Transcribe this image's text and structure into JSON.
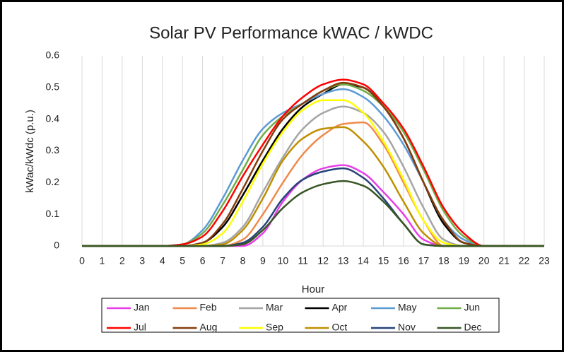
{
  "chart_data": {
    "type": "line",
    "title": "Solar PV Performance kWAC / kWDC",
    "x_label": "Hour",
    "y_label": "kWac/kWdc (p.u.)",
    "x": [
      0,
      1,
      2,
      3,
      4,
      5,
      6,
      7,
      8,
      9,
      10,
      11,
      12,
      13,
      14,
      15,
      16,
      17,
      18,
      19,
      20,
      21,
      22,
      23
    ],
    "xlim": [
      0,
      23
    ],
    "xticks": [
      0,
      1,
      2,
      3,
      4,
      5,
      6,
      7,
      8,
      9,
      10,
      11,
      12,
      13,
      14,
      15,
      16,
      17,
      18,
      19,
      20,
      21,
      22,
      23
    ],
    "ylim": [
      0,
      0.6
    ],
    "yticks": [
      0,
      0.1,
      0.2,
      0.3,
      0.4,
      0.5,
      0.6
    ],
    "grid": {
      "x": true,
      "y": false
    },
    "legend": "bottom",
    "series": [
      {
        "name": "Jan",
        "color": "#e83ee8",
        "values": [
          0,
          0,
          0,
          0,
          0,
          0,
          0,
          0,
          0,
          0.04,
          0.14,
          0.21,
          0.245,
          0.255,
          0.23,
          0.17,
          0.1,
          0.02,
          0,
          0,
          0,
          0,
          0,
          0
        ]
      },
      {
        "name": "Feb",
        "color": "#f08a4b",
        "values": [
          0,
          0,
          0,
          0,
          0,
          0,
          0,
          0,
          0.02,
          0.1,
          0.2,
          0.29,
          0.35,
          0.385,
          0.39,
          0.32,
          0.2,
          0.08,
          0,
          0,
          0,
          0,
          0,
          0
        ]
      },
      {
        "name": "Mar",
        "color": "#a5a5a5",
        "values": [
          0,
          0,
          0,
          0,
          0,
          0,
          0,
          0.01,
          0.06,
          0.17,
          0.28,
          0.37,
          0.42,
          0.44,
          0.42,
          0.36,
          0.25,
          0.12,
          0.02,
          0,
          0,
          0,
          0,
          0
        ]
      },
      {
        "name": "Apr",
        "color": "#000000",
        "values": [
          0,
          0,
          0,
          0,
          0,
          0,
          0.01,
          0.06,
          0.16,
          0.27,
          0.37,
          0.44,
          0.48,
          0.51,
          0.5,
          0.44,
          0.34,
          0.2,
          0.07,
          0.01,
          0,
          0,
          0,
          0
        ]
      },
      {
        "name": "May",
        "color": "#5b9bd5",
        "values": [
          0,
          0,
          0,
          0,
          0,
          0.005,
          0.05,
          0.15,
          0.27,
          0.37,
          0.42,
          0.45,
          0.48,
          0.495,
          0.47,
          0.41,
          0.32,
          0.2,
          0.08,
          0.02,
          0,
          0,
          0,
          0
        ]
      },
      {
        "name": "Jun",
        "color": "#70ad47",
        "values": [
          0,
          0,
          0,
          0,
          0,
          0.005,
          0.04,
          0.13,
          0.24,
          0.35,
          0.41,
          0.45,
          0.49,
          0.51,
          0.49,
          0.44,
          0.36,
          0.24,
          0.11,
          0.03,
          0,
          0,
          0,
          0
        ]
      },
      {
        "name": "Jul",
        "color": "#ff0000",
        "values": [
          0,
          0,
          0,
          0,
          0,
          0.005,
          0.03,
          0.11,
          0.22,
          0.32,
          0.41,
          0.47,
          0.51,
          0.525,
          0.51,
          0.45,
          0.37,
          0.25,
          0.12,
          0.04,
          0,
          0,
          0,
          0
        ]
      },
      {
        "name": "Aug",
        "color": "#843c0c",
        "values": [
          0,
          0,
          0,
          0,
          0,
          0,
          0.01,
          0.07,
          0.18,
          0.3,
          0.4,
          0.45,
          0.49,
          0.515,
          0.5,
          0.44,
          0.34,
          0.2,
          0.08,
          0.01,
          0,
          0,
          0,
          0
        ]
      },
      {
        "name": "Sep",
        "color": "#ffff00",
        "values": [
          0,
          0,
          0,
          0,
          0,
          0,
          0.005,
          0.04,
          0.14,
          0.26,
          0.36,
          0.43,
          0.46,
          0.46,
          0.42,
          0.33,
          0.21,
          0.08,
          0.01,
          0,
          0,
          0,
          0,
          0
        ]
      },
      {
        "name": "Oct",
        "color": "#bf8f00",
        "values": [
          0,
          0,
          0,
          0,
          0,
          0,
          0,
          0.005,
          0.05,
          0.15,
          0.27,
          0.34,
          0.37,
          0.375,
          0.33,
          0.25,
          0.14,
          0.04,
          0,
          0,
          0,
          0,
          0,
          0
        ]
      },
      {
        "name": "Nov",
        "color": "#264478",
        "values": [
          0,
          0,
          0,
          0,
          0,
          0,
          0,
          0,
          0.01,
          0.06,
          0.15,
          0.21,
          0.235,
          0.245,
          0.215,
          0.15,
          0.07,
          0.005,
          0,
          0,
          0,
          0,
          0,
          0
        ]
      },
      {
        "name": "Dec",
        "color": "#375623",
        "values": [
          0,
          0,
          0,
          0,
          0,
          0,
          0,
          0,
          0.005,
          0.05,
          0.12,
          0.17,
          0.195,
          0.205,
          0.19,
          0.14,
          0.07,
          0.005,
          0,
          0,
          0,
          0,
          0,
          0
        ]
      }
    ]
  }
}
